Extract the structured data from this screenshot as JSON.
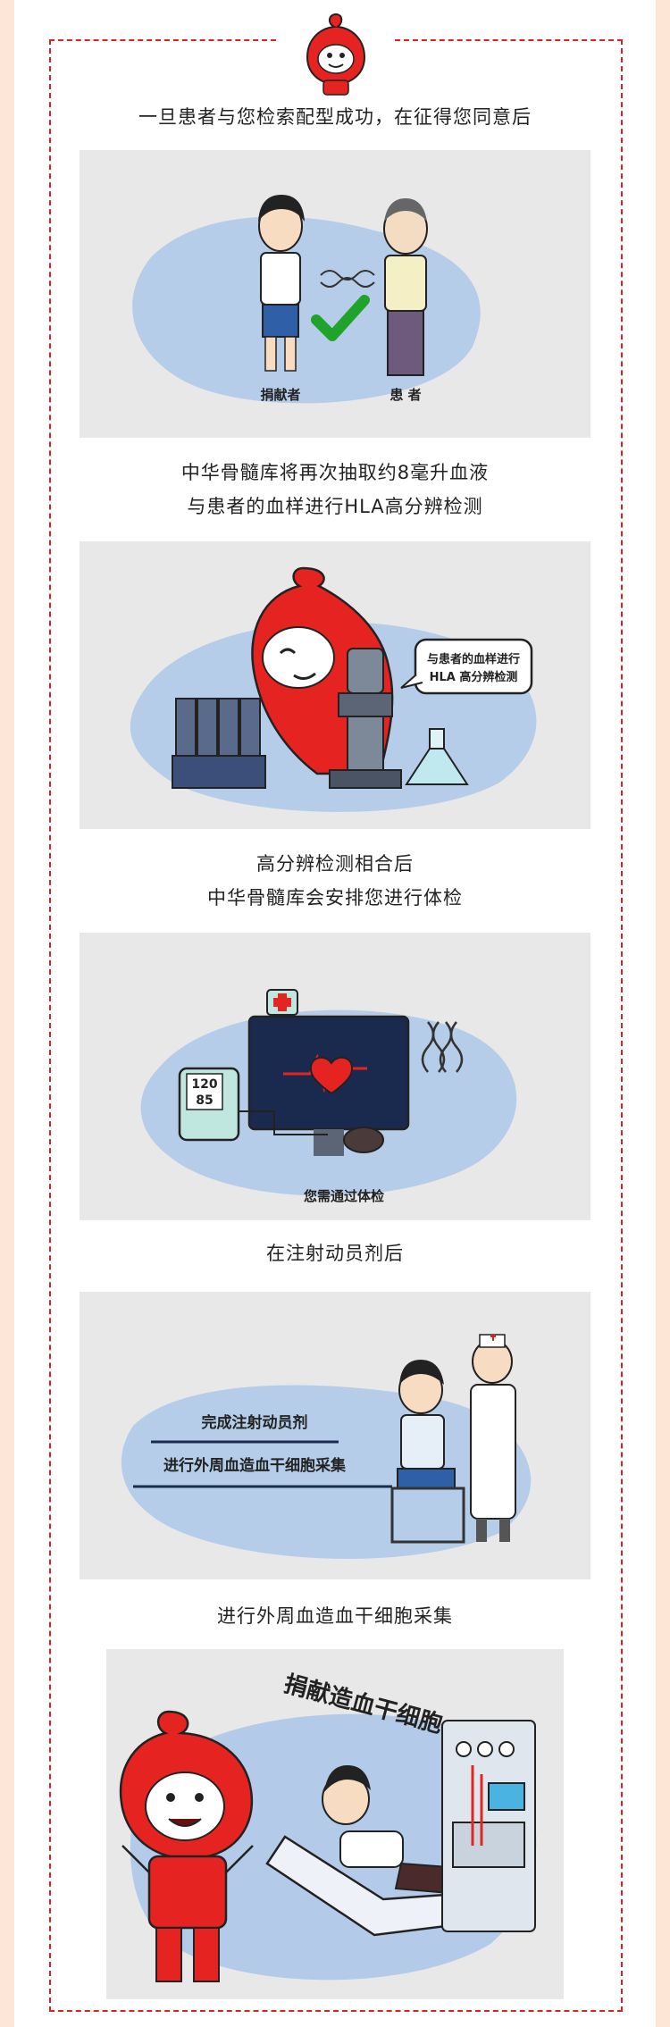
{
  "captions": {
    "c1": "一旦患者与您检索配型成功，在征得您同意后",
    "c2_line1": "中华骨髓库将再次抽取约8毫升血液",
    "c2_line2": "与患者的血样进行HLA高分辨检测",
    "c3_line1": "高分辨检测相合后",
    "c3_line2": "中华骨髓库会安排您进行体检",
    "c4": "在注射动员剂后",
    "c5": "进行外周血造血干细胞采集"
  },
  "panel1": {
    "donor_label": "捐献者",
    "patient_label": "患 者"
  },
  "panel2": {
    "bubble_line1": "与患者的血样进行",
    "bubble_line2": "HLA 高分辨检测"
  },
  "panel3": {
    "bp_top": "120",
    "bp_bottom": "85",
    "label": "您需通过体检"
  },
  "panel4": {
    "step1": "完成注射动员剂",
    "step2": "进行外周血造血干细胞采集"
  },
  "panel5": {
    "title": "捐献造血干细胞"
  },
  "colors": {
    "accent": "#e02020",
    "frame": "#e02020",
    "bg": "#fde6d6",
    "blue_wash": "#a9c6e8"
  }
}
